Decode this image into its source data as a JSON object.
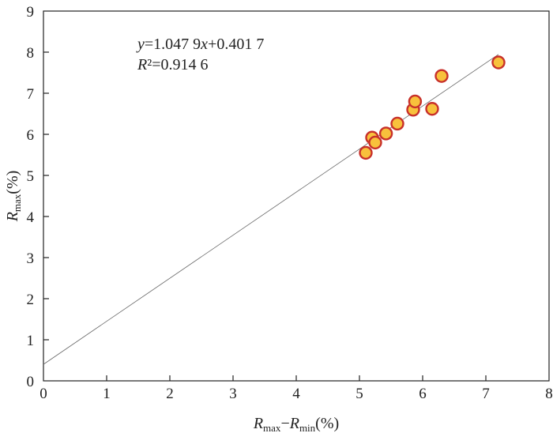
{
  "chart_data": {
    "type": "scatter",
    "title": "",
    "xlabel": {
      "main": "R",
      "sub1": "max",
      "minus": "−",
      "main2": "R",
      "sub2": "min",
      "unit": "(%)"
    },
    "ylabel": {
      "main": "R",
      "sub": "max",
      "unit": "(%)"
    },
    "xlim": [
      0,
      8
    ],
    "ylim": [
      0,
      9
    ],
    "xticks": [
      "0",
      "1",
      "2",
      "3",
      "4",
      "5",
      "6",
      "7",
      "8"
    ],
    "yticks": [
      "0",
      "1",
      "2",
      "3",
      "4",
      "5",
      "6",
      "7",
      "8",
      "9"
    ],
    "points": [
      {
        "x": 5.1,
        "y": 5.55
      },
      {
        "x": 5.2,
        "y": 5.92
      },
      {
        "x": 5.25,
        "y": 5.8
      },
      {
        "x": 5.42,
        "y": 6.02
      },
      {
        "x": 5.6,
        "y": 6.26
      },
      {
        "x": 5.85,
        "y": 6.6
      },
      {
        "x": 5.88,
        "y": 6.8
      },
      {
        "x": 6.15,
        "y": 6.62
      },
      {
        "x": 6.3,
        "y": 7.42
      },
      {
        "x": 7.2,
        "y": 7.75
      }
    ],
    "fit": {
      "slope": 1.0479,
      "intercept": 0.4017,
      "x_range": [
        0,
        7.2
      ]
    },
    "annotation": {
      "equation": {
        "y": "y",
        "eq": "=1.047 9",
        "x": "x",
        "rest": "+0.401 7"
      },
      "r2": {
        "r": "R",
        "rest": "²=0.914 6"
      }
    },
    "marker": {
      "fill": "#f8c13c",
      "stroke": "#c8302a"
    },
    "line_color": "#666666",
    "grid": false
  }
}
